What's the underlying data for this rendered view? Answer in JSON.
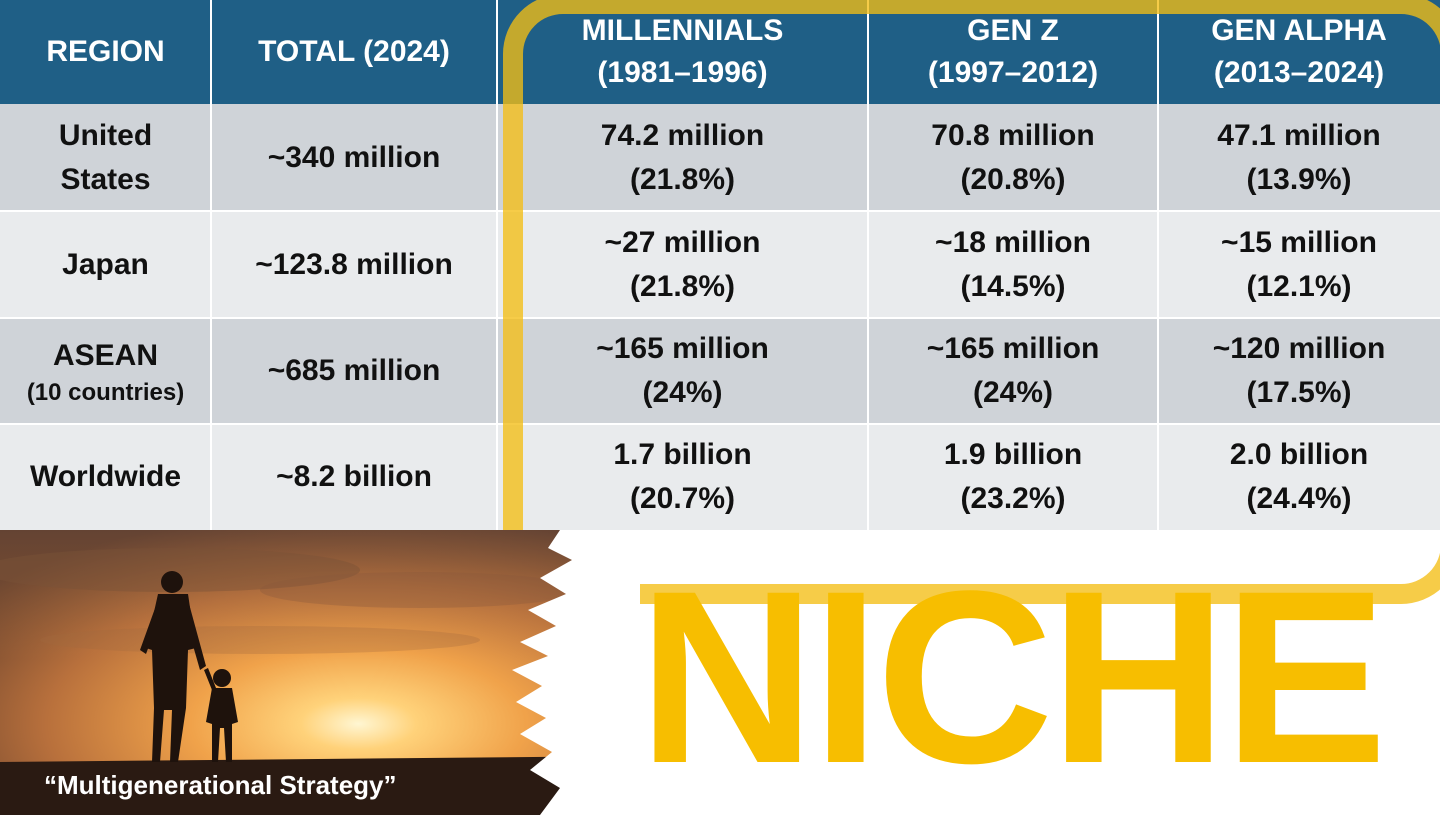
{
  "table": {
    "headers": [
      {
        "line1": "REGION",
        "line2": ""
      },
      {
        "line1": "TOTAL  (2024)",
        "line2": ""
      },
      {
        "line1": "MILLENNIALS",
        "line2": "(1981–1996)"
      },
      {
        "line1": "GEN Z",
        "line2": "(1997–2012)"
      },
      {
        "line1": "GEN ALPHA",
        "line2": "(2013–2024)"
      }
    ],
    "rows": [
      {
        "region": "United",
        "region2": "States",
        "total": "~340 million",
        "mil": "74.2 million",
        "mil_pct": "(21.8%)",
        "genz": "70.8 million",
        "genz_pct": "(20.8%)",
        "alpha": "47.1 million",
        "alpha_pct": "(13.9%)"
      },
      {
        "region": "Japan",
        "region2": "",
        "total": "~123.8 million",
        "mil": "~27 million",
        "mil_pct": "(21.8%)",
        "genz": "~18 million",
        "genz_pct": "(14.5%)",
        "alpha": "~15 million",
        "alpha_pct": "(12.1%)"
      },
      {
        "region": "ASEAN",
        "region2": "(10 countries)",
        "total": "~685 million",
        "mil": "~165 million",
        "mil_pct": "(24%)",
        "genz": "~165 million",
        "genz_pct": "(24%)",
        "alpha": "~120 million",
        "alpha_pct": "(17.5%)"
      },
      {
        "region": "Worldwide",
        "region2": "",
        "total": "~8.2 billion",
        "mil": "1.7 billion",
        "mil_pct": "(20.7%)",
        "genz": "1.9 billion",
        "genz_pct": "(23.2%)",
        "alpha": "2.0 billion",
        "alpha_pct": "(24.4%)"
      }
    ]
  },
  "caption": "“Multigenerational Strategy”",
  "headline": "NICHE",
  "colors": {
    "header": "#1f5f86",
    "highlight": "#f4be14",
    "headline": "#f7be00"
  }
}
